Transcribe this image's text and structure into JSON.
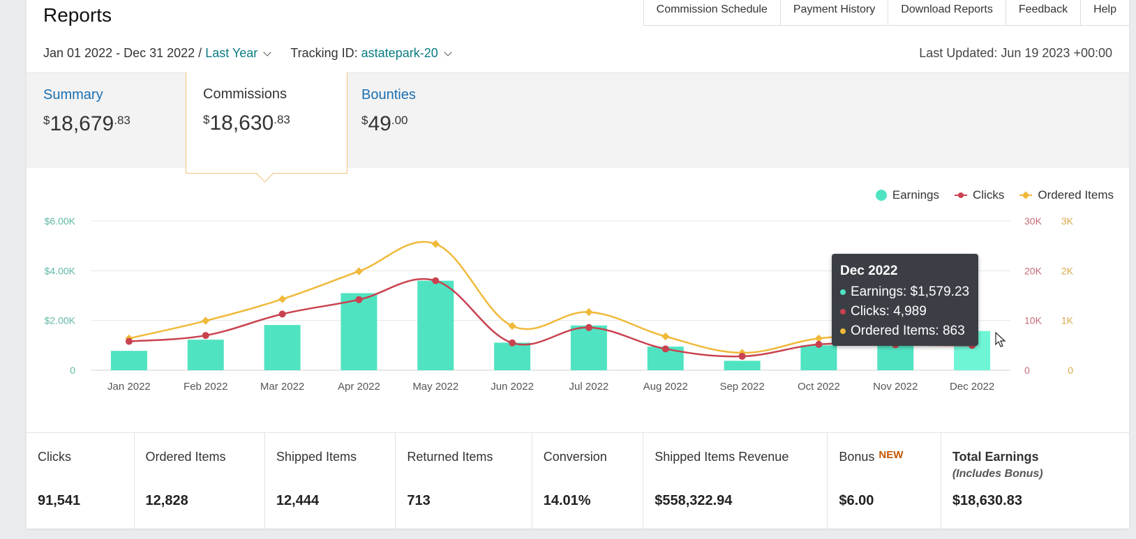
{
  "page": {
    "title": "Reports"
  },
  "top_nav": [
    "Commission Schedule",
    "Payment History",
    "Download Reports",
    "Feedback",
    "Help"
  ],
  "filters": {
    "date_range": "Jan 01 2022 - Dec 31 2022 /",
    "period_link": "Last Year",
    "tracking_label": "Tracking ID:",
    "tracking_value": "astatepark-20",
    "last_updated": "Last Updated: Jun 19 2023 +00:00"
  },
  "tabs": [
    {
      "label": "Summary",
      "dollars": "18,679",
      "cents": ".83"
    },
    {
      "label": "Commissions",
      "dollars": "18,630",
      "cents": ".83"
    },
    {
      "label": "Bounties",
      "dollars": "49",
      "cents": ".00"
    }
  ],
  "chart_data": {
    "type": "bar",
    "categories": [
      "Jan 2022",
      "Feb 2022",
      "Mar 2022",
      "Apr 2022",
      "May 2022",
      "Jun 2022",
      "Jul 2022",
      "Aug 2022",
      "Sep 2022",
      "Oct 2022",
      "Nov 2022",
      "Dec 2022"
    ],
    "series": [
      {
        "name": "Earnings",
        "type": "bar",
        "axis": "left",
        "color": "#50e3c2",
        "values": [
          780,
          1230,
          1820,
          3100,
          3600,
          1110,
          1800,
          950,
          380,
          1000,
          1200,
          1579.23
        ]
      },
      {
        "name": "Clicks",
        "type": "line",
        "axis": "right-clicks",
        "color": "#c9424f",
        "values": [
          5800,
          7000,
          11300,
          14200,
          18000,
          5500,
          8600,
          4300,
          2800,
          5200,
          5100,
          4989
        ]
      },
      {
        "name": "Ordered Items",
        "type": "line",
        "axis": "right-items",
        "color": "#f0b93a",
        "values": [
          640,
          995,
          1430,
          1990,
          2540,
          890,
          1170,
          680,
          350,
          640,
          700,
          863
        ]
      }
    ],
    "left_axis": {
      "ticks": [
        "0",
        "$2.00K",
        "$4.00K",
        "$6.00K"
      ],
      "ylim": [
        0,
        6000
      ]
    },
    "right_axis_clicks": {
      "ticks": [
        "0",
        "10K",
        "20K",
        "30K"
      ],
      "ylim": [
        0,
        30000
      ]
    },
    "right_axis_items": {
      "ticks": [
        "0",
        "1K",
        "2K",
        "3K"
      ],
      "ylim": [
        0,
        3000
      ]
    },
    "legend_position": "top-right",
    "grid": true,
    "highlight_index": 11
  },
  "tooltip": {
    "title": "Dec 2022",
    "rows": [
      {
        "text": "Earnings: $1,579.23",
        "color": "#50e3c2"
      },
      {
        "text": "Clicks: 4,989",
        "color": "#c9424f"
      },
      {
        "text": "Ordered Items: 863",
        "color": "#f0b93a"
      }
    ]
  },
  "stats": [
    {
      "label": "Clicks",
      "value": "91,541"
    },
    {
      "label": "Ordered Items",
      "value": "12,828"
    },
    {
      "label": "Shipped Items",
      "value": "12,444"
    },
    {
      "label": "Returned Items",
      "value": "713"
    },
    {
      "label": "Conversion",
      "value": "14.01%"
    },
    {
      "label": "Shipped Items Revenue",
      "value": "$558,322.94"
    },
    {
      "label": "Bonus",
      "badge": "NEW",
      "value": "$6.00"
    },
    {
      "label": "Total Earnings",
      "sub": "(Includes Bonus)",
      "value": "$18,630.83"
    }
  ]
}
